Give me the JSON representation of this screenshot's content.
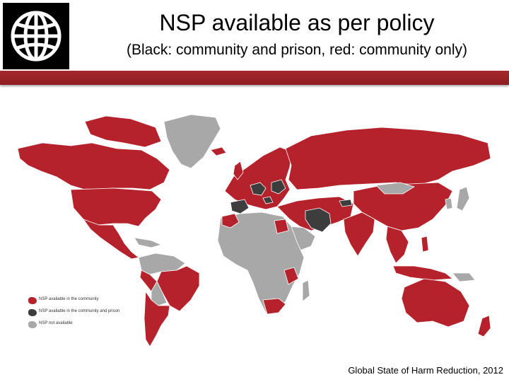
{
  "title": "NSP available as per policy",
  "subtitle": "(Black: community and prison, red: community only)",
  "source": "Global State of Harm Reduction, 2012",
  "colors": {
    "community": "#b5222b",
    "community_prison": "#3d3d3d",
    "not_available": "#a8a8a8",
    "header_bar": "#a4282d"
  },
  "logo": {
    "icon": "world-bank-globe-icon"
  },
  "legend": {
    "items": [
      {
        "label": "NSP available in the community",
        "color": "#b5222b"
      },
      {
        "label": "NSP available in the community and prison",
        "color": "#3d3d3d"
      },
      {
        "label": "NSP not available",
        "color": "#a8a8a8"
      }
    ]
  }
}
